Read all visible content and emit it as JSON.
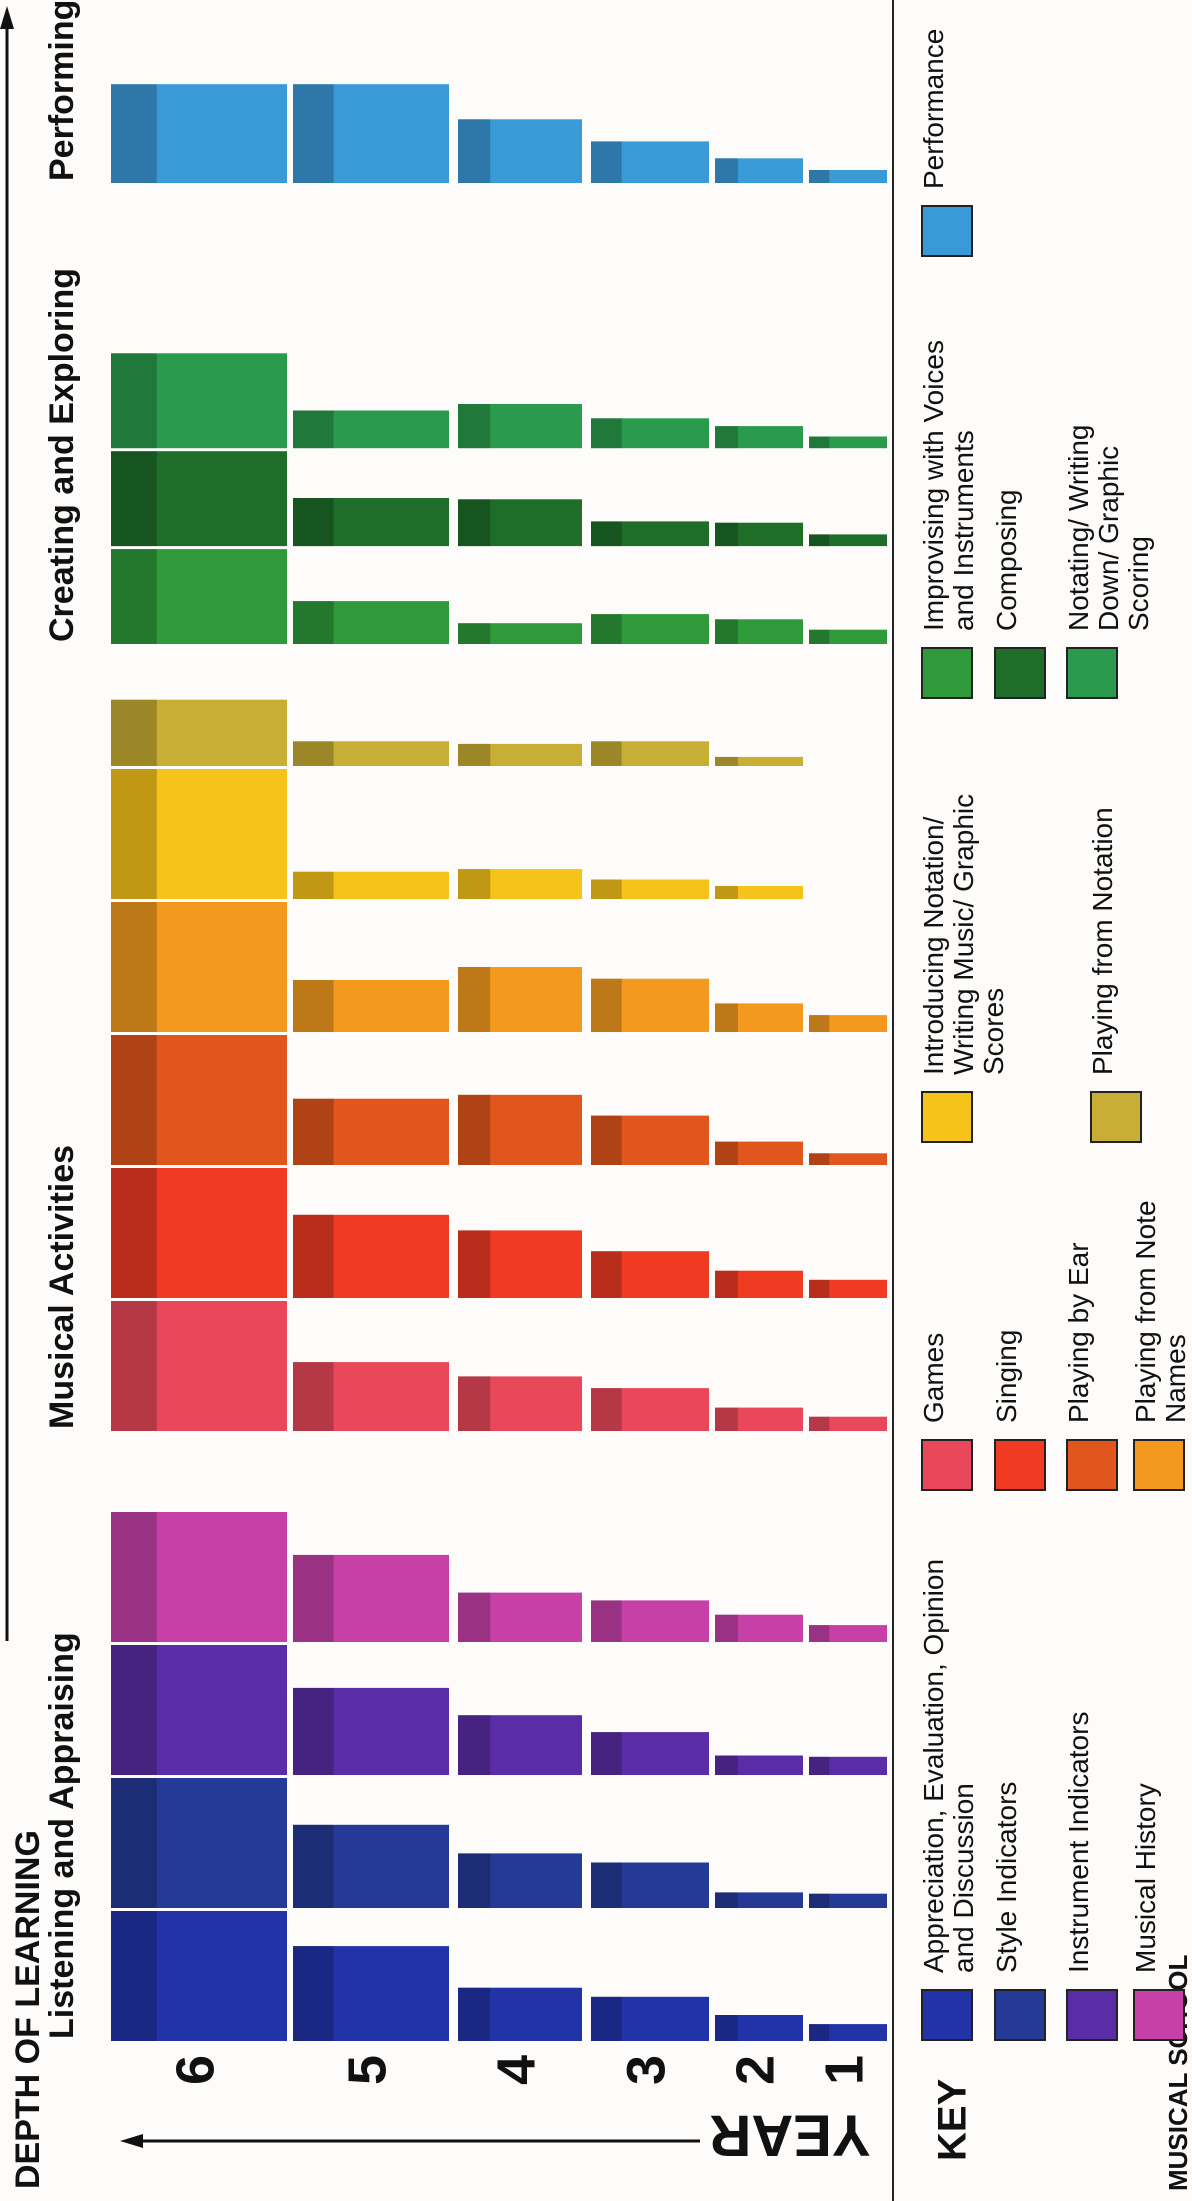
{
  "chart_data": {
    "type": "bar",
    "title": "DEPTH OF LEARNING",
    "y_axis_label": "YEAR",
    "legend_title": "KEY",
    "brand": "MUSICAL SCHOOL",
    "categories": [
      "1",
      "2",
      "3",
      "4",
      "5",
      "6"
    ],
    "groups": [
      {
        "name": "Listening and Appraising",
        "series": [
          {
            "name": "Appreciation, Evaluation, Opinion and Discussion",
            "color": "#2233a8",
            "values": [
              13,
              20,
              34,
              41,
              73,
              100
            ]
          },
          {
            "name": "Style Indicators",
            "color": "#243a96",
            "values": [
              11,
              12,
              35,
              42,
              64,
              100
            ]
          },
          {
            "name": "Instrument Indicators",
            "color": "#5a2ca6",
            "values": [
              14,
              15,
              33,
              46,
              67,
              100
            ]
          },
          {
            "name": "Musical History",
            "color": "#c640a8",
            "values": [
              13,
              21,
              32,
              38,
              67,
              100
            ]
          }
        ]
      },
      {
        "name": "Musical Activities",
        "series": [
          {
            "name": "Games",
            "color": "#e8485a",
            "values": [
              11,
              18,
              33,
              42,
              53,
              100
            ]
          },
          {
            "name": "Singing",
            "color": "#ee3b22",
            "values": [
              14,
              21,
              36,
              52,
              64,
              100
            ]
          },
          {
            "name": "Playing by Ear",
            "color": "#e0561c",
            "values": [
              9,
              18,
              38,
              54,
              51,
              100
            ]
          },
          {
            "name": "Playing from Note Names",
            "color": "#f39a1e",
            "values": [
              13,
              22,
              41,
              50,
              40,
              100
            ]
          },
          {
            "name": "Introducing Notation/ Writing Music/ Graphic Scores",
            "color": "#f6c31a",
            "values": [
              0,
              10,
              15,
              23,
              21,
              100
            ]
          },
          {
            "name": "Playing from Notation",
            "color": "#c8ae34",
            "values": [
              0,
              7,
              19,
              17,
              19,
              51
            ]
          }
        ]
      },
      {
        "name": "Creating and Exploring",
        "series": [
          {
            "name": "Improvising with Voices and Instruments",
            "color": "#2f9a3a",
            "values": [
              11,
              19,
              23,
              16,
              33,
              73
            ]
          },
          {
            "name": "Composing",
            "color": "#1e6e2a",
            "values": [
              9,
              18,
              19,
              36,
              37,
              73
            ]
          },
          {
            "name": "Notating/ Writing Down/ Graphic Scoring",
            "color": "#2a9a4c",
            "values": [
              9,
              17,
              23,
              34,
              29,
              73
            ]
          }
        ]
      },
      {
        "name": "Performing",
        "series": [
          {
            "name": "Performance",
            "color": "#3a9ad8",
            "values": [
              10,
              19,
              32,
              49,
              76,
              76
            ]
          }
        ]
      }
    ]
  }
}
